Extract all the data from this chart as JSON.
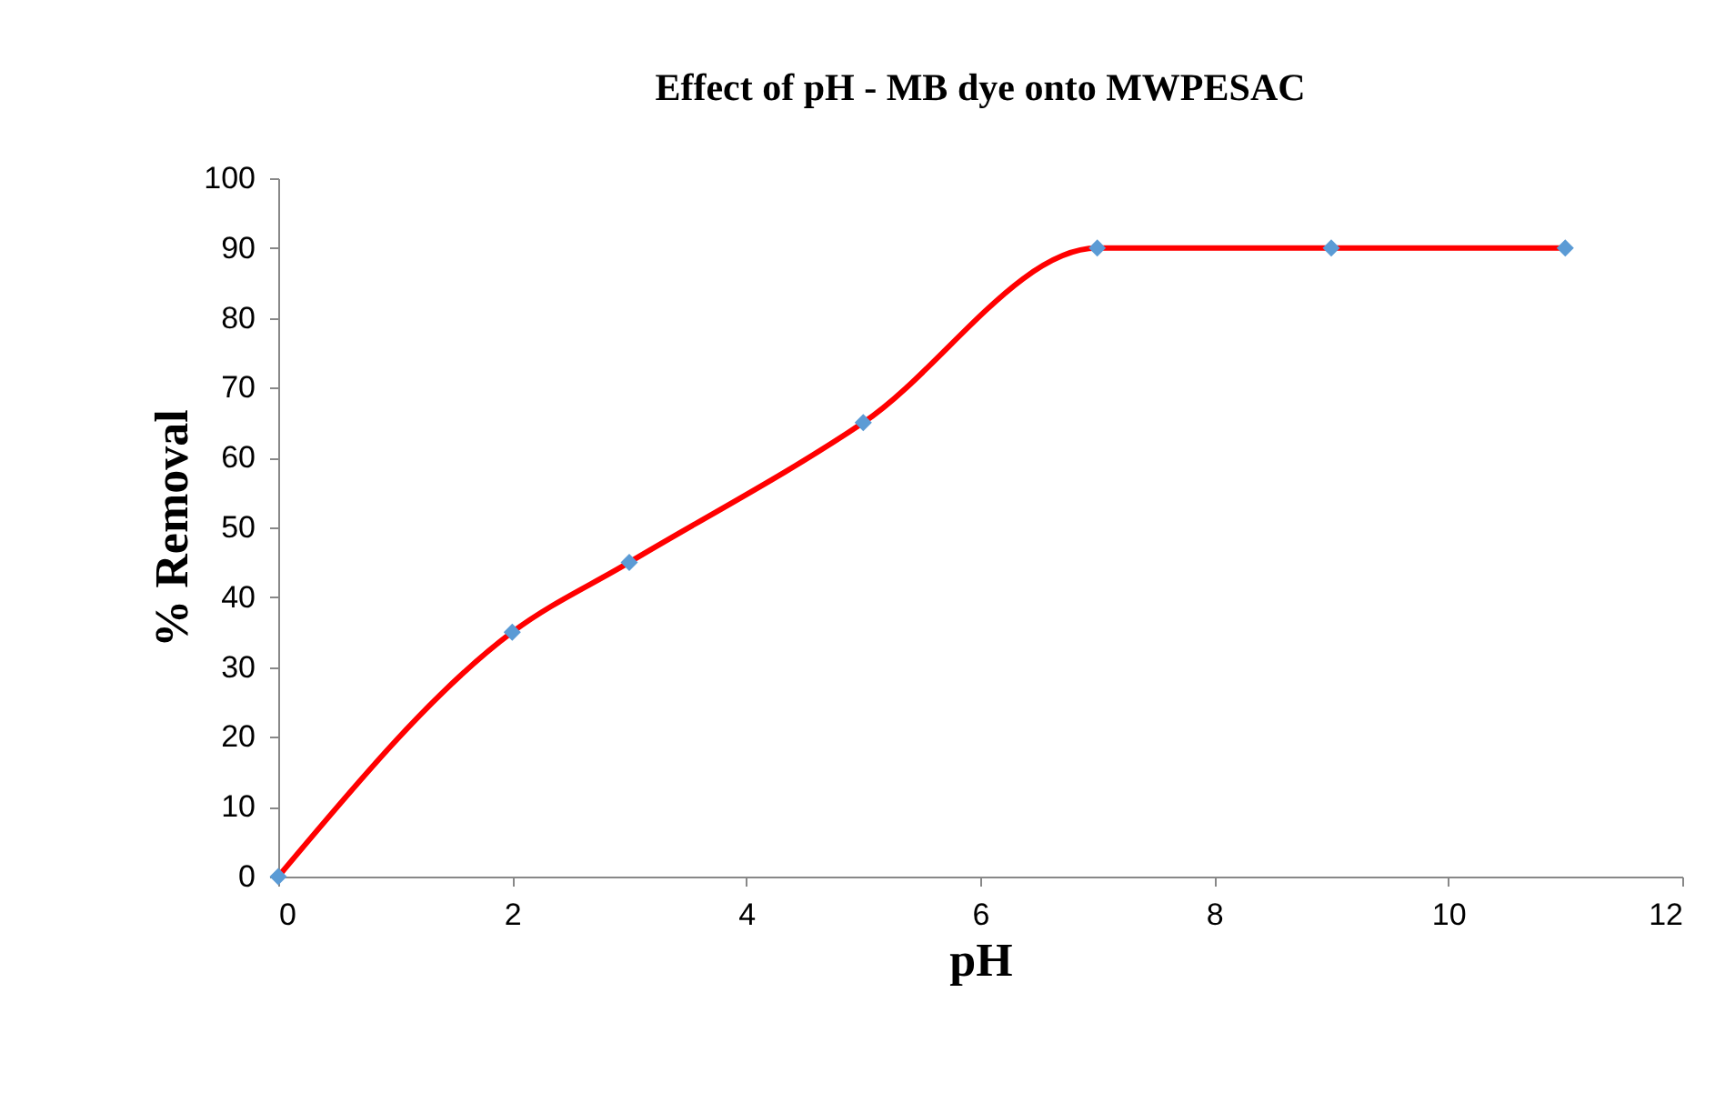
{
  "chart_data": {
    "type": "line",
    "title": "Effect of pH - MB dye onto MWPESAC",
    "xlabel": "pH",
    "ylabel": "% Removal",
    "x": [
      0,
      2,
      3,
      5,
      7,
      9,
      11
    ],
    "series": [
      {
        "color": "#ff0000",
        "marker": "none",
        "line_style": "solid",
        "values": [
          0,
          35,
          45,
          65,
          90,
          90,
          90
        ]
      },
      {
        "type": "scatter",
        "color": "#5b9bd5",
        "marker": "diamond",
        "values": [
          0,
          35,
          45,
          65,
          90,
          90,
          90
        ]
      }
    ],
    "xlim": [
      0,
      12
    ],
    "xticks": [
      0,
      2,
      4,
      6,
      8,
      10,
      12
    ],
    "ylim": [
      0,
      100
    ],
    "yticks": [
      0,
      10,
      20,
      30,
      40,
      50,
      60,
      70,
      80,
      90,
      100
    ],
    "grid": false,
    "legend": false
  }
}
